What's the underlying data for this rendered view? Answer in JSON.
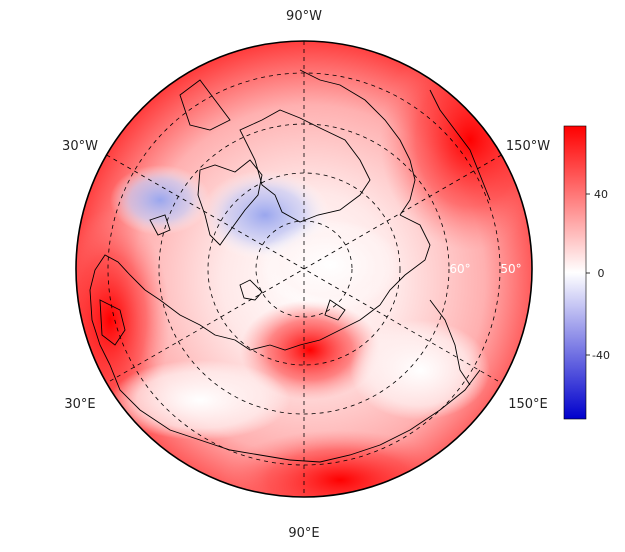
{
  "map": {
    "projection": "north-polar stereographic",
    "longitude_labels": {
      "top": "90°W",
      "upper_left": "30°W",
      "upper_right": "150°W",
      "lower_left": "30°E",
      "lower_right": "150°E",
      "bottom": "90°E"
    },
    "latitude_labels": [
      "60°",
      "50°"
    ],
    "latitude_circles": [
      "80°",
      "70°",
      "60°",
      "50°"
    ],
    "meridian_interval_degrees": 30,
    "fill_colormap": "blue-white-red diverging"
  },
  "colorbar": {
    "ticks": [
      "40",
      "0",
      "-40"
    ],
    "range": [
      -60,
      60
    ],
    "colors": {
      "high": "#ff0000",
      "mid": "#ffffff",
      "low": "#0000cc"
    }
  },
  "colors": {
    "coastline": "#000000",
    "grid": "#000000",
    "background": "#ffffff"
  }
}
